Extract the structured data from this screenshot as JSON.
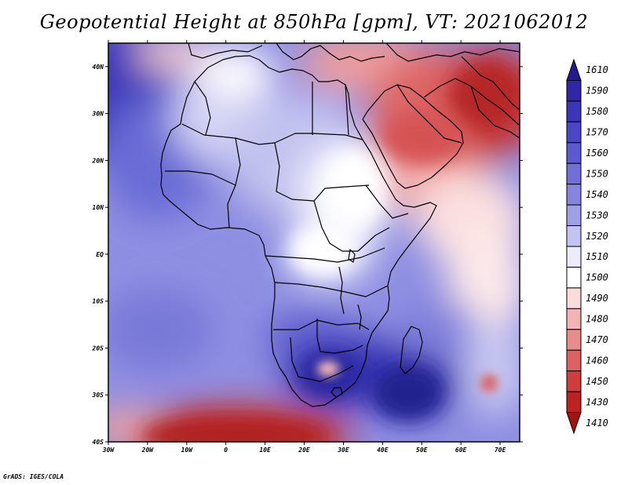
{
  "title": "Geopotential Height at 850hPa [gpm], VT: 2021062012",
  "credit": "GrADS: IGES/COLA",
  "axes": {
    "x_ticks": [
      "30W",
      "20W",
      "10W",
      "0",
      "10E",
      "20E",
      "30E",
      "40E",
      "50E",
      "60E",
      "70E"
    ],
    "y_ticks": [
      "40N",
      "30N",
      "20N",
      "10N",
      "EQ",
      "10S",
      "20S",
      "30S",
      "40S"
    ]
  },
  "colorbar": {
    "levels": [
      "1610",
      "1590",
      "1580",
      "1570",
      "1560",
      "1550",
      "1540",
      "1530",
      "1520",
      "1510",
      "1500",
      "1490",
      "1480",
      "1470",
      "1460",
      "1450",
      "1430",
      "1410"
    ],
    "colors_top_to_bottom": [
      "#231a8f",
      "#2e28a8",
      "#3a36b8",
      "#4a47c4",
      "#5b5ad0",
      "#6e6fd8",
      "#8585e0",
      "#a0a0e8",
      "#c4c4f2",
      "#ecebfb",
      "#ffffff",
      "#fadcdc",
      "#f2b5b5",
      "#e88c8c",
      "#dc6262",
      "#cf3d3d",
      "#bb2222",
      "#a01414"
    ]
  },
  "map": {
    "projection": "lat-lon",
    "lon_range": [
      -30,
      75
    ],
    "lat_range": [
      -40,
      45
    ]
  }
}
